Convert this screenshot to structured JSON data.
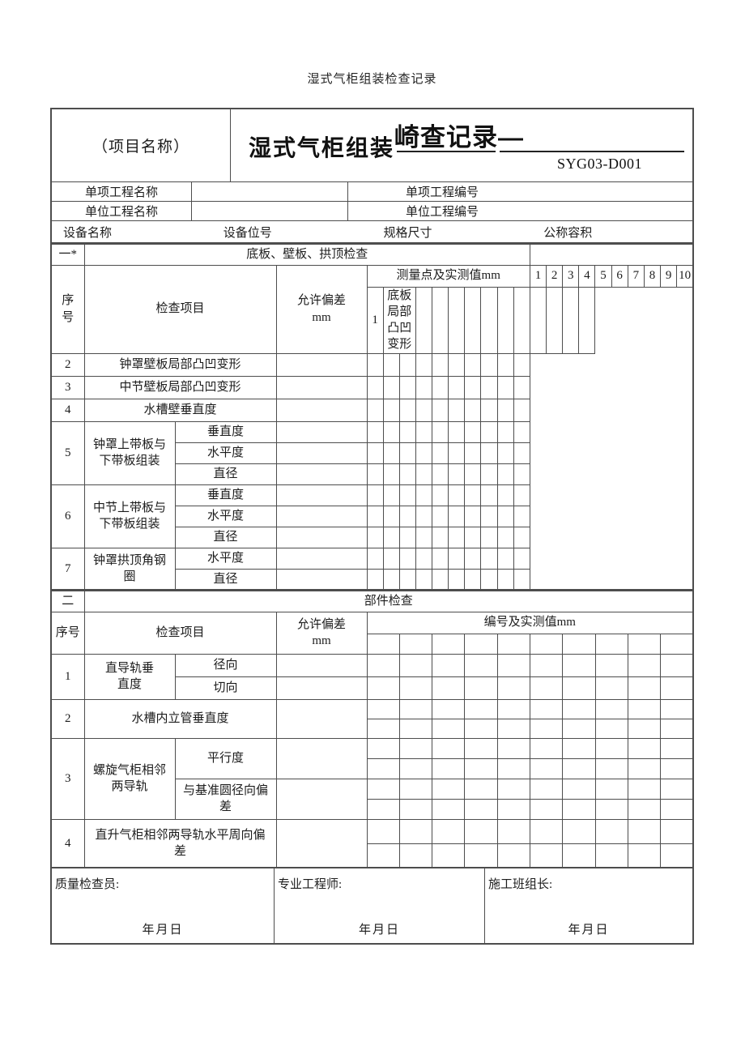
{
  "page": {
    "heading": "湿式气柜组装检查记录"
  },
  "header": {
    "project_name_label": "（项目名称）",
    "title_main": "湿式气柜组装",
    "title_overlay": "崎查记录—",
    "doc_code": "SYG03-D001",
    "info_rows": [
      {
        "label_left": "单项工程名称",
        "value_left": "",
        "label_right": "单项工程编号",
        "value_right": ""
      },
      {
        "label_left": "单位工程名称",
        "value_left": "",
        "label_right": "单位工程编号",
        "value_right": ""
      }
    ],
    "equipment_labels": [
      "设备名称",
      "设备位号",
      "规格尺寸",
      "公称容积"
    ]
  },
  "section1": {
    "index_label": "一*",
    "title": "底板、壁板、拱顶检查",
    "header": {
      "seq": "序\n号",
      "item": "检查项目",
      "tolerance": "允许偏差\nmm",
      "measure_title": "测量点及实测值mm",
      "measure_cols": [
        "1",
        "2",
        "3",
        "4",
        "5",
        "6",
        "7",
        "8",
        "9",
        "10"
      ]
    },
    "rows": [
      {
        "seq": "1",
        "item": "底板局部凸凹变形"
      },
      {
        "seq": "2",
        "item": "钟罩壁板局部凸凹变形"
      },
      {
        "seq": "3",
        "item": "中节壁板局部凸凹变形"
      },
      {
        "seq": "4",
        "item": "水槽壁垂直度"
      },
      {
        "seq": "5",
        "item": "钟罩上带板与\n下带板组装",
        "subitems": [
          "垂直度",
          "水平度",
          "直径"
        ]
      },
      {
        "seq": "6",
        "item": "中节上带板与\n下带板组装",
        "subitems": [
          "垂直度",
          "水平度",
          "直径"
        ]
      },
      {
        "seq": "7",
        "item": "钟罩拱顶角钢\n圈",
        "subitems": [
          "水平度",
          "直径"
        ]
      }
    ]
  },
  "section2": {
    "index_label": "二",
    "title": "部件检查",
    "header": {
      "seq": "序号",
      "item": "检查项目",
      "tolerance": "允许偏差\nmm",
      "measure_title": "编号及实测值mm"
    },
    "rows": [
      {
        "seq": "1",
        "item": "直导轨垂\n直度",
        "subitems": [
          "径向",
          "切向"
        ]
      },
      {
        "seq": "2",
        "item": "水槽内立管垂直度"
      },
      {
        "seq": "3",
        "item": "螺旋气柜相邻\n两导轨",
        "subitems": [
          "平行度",
          "与基准圆径向偏\n差"
        ]
      },
      {
        "seq": "4",
        "item": "直升气柜相邻两导轨水平周向偏\n差"
      }
    ]
  },
  "footer": {
    "cells": [
      {
        "label": "质量检查员:",
        "date": "年月日"
      },
      {
        "label": "专业工程师:",
        "date": "年月日"
      },
      {
        "label": "施工班组长:",
        "date": "年月日"
      }
    ]
  }
}
